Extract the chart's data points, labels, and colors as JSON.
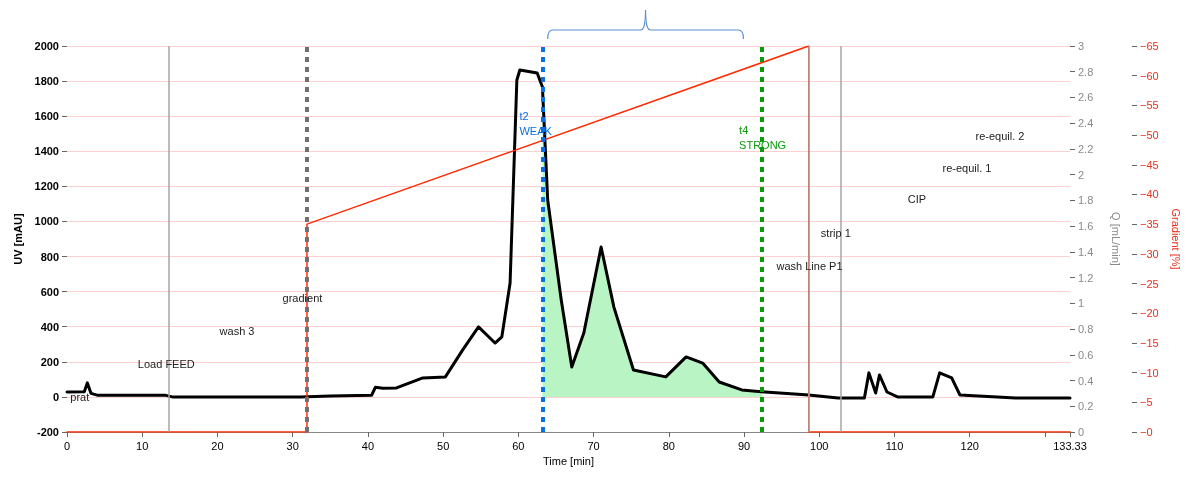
{
  "chart_data": {
    "type": "line",
    "xlabel": "Time [min]",
    "ylabel": "UV [mAU]",
    "y2label": "Q [mL/min]",
    "y3label": "Gradient [%]",
    "xlim": [
      0,
      133.33
    ],
    "xticks": [
      0,
      10,
      20,
      30,
      40,
      50,
      60,
      70,
      80,
      90,
      100,
      110,
      120,
      {
        "value": 130,
        "label": null
      },
      {
        "value": 133.33,
        "label": "133.33"
      }
    ],
    "ylim": [
      -200,
      2000
    ],
    "yticks": [
      -200,
      0,
      200,
      400,
      600,
      800,
      1000,
      1200,
      1400,
      1600,
      1800,
      2000
    ],
    "y2lim": [
      0,
      3
    ],
    "y2ticks": [
      0,
      0.2,
      0.4,
      0.6,
      0.8,
      1,
      1.2,
      1.4,
      1.6,
      1.8,
      2,
      2.2,
      2.4,
      2.6,
      2.8,
      3
    ],
    "y3lim": [
      0,
      -65
    ],
    "y3ticks": [
      {
        "value": 0,
        "label": "−0"
      },
      {
        "value": -5,
        "label": "−5"
      },
      {
        "value": -10,
        "label": "−10"
      },
      {
        "value": -15,
        "label": "−15"
      },
      {
        "value": -20,
        "label": "−20"
      },
      {
        "value": -25,
        "label": "−25"
      },
      {
        "value": -30,
        "label": "−30"
      },
      {
        "value": -35,
        "label": "−35"
      },
      {
        "value": -40,
        "label": "−40"
      },
      {
        "value": -45,
        "label": "−45"
      },
      {
        "value": -50,
        "label": "−50"
      },
      {
        "value": -55,
        "label": "−55"
      },
      {
        "value": -60,
        "label": "−60"
      },
      {
        "value": -65,
        "label": "−65"
      }
    ],
    "grid": "y",
    "marker": "none",
    "series": [
      {
        "color": "#000000",
        "x": [
          0,
          2.3,
          2.7,
          3.2,
          4,
          13,
          14,
          31,
          35,
          40.5,
          41,
          42,
          43.8,
          47.3,
          50.3,
          52.6,
          54.7,
          56.9,
          57.8,
          58.9,
          59.8,
          60.2,
          62.5,
          63.2,
          63.9,
          65.7,
          67.1,
          68.7,
          71,
          72.7,
          75.3,
          79.6,
          82.3,
          84.5,
          86.7,
          89.7,
          92.8,
          98.6,
          102.5,
          106,
          106.6,
          107.5,
          108,
          109,
          110.4,
          115.1,
          116,
          117.6,
          118.7,
          126.1,
          133.33
        ],
        "values": [
          28,
          30,
          80,
          20,
          10,
          10,
          0,
          0,
          5,
          10,
          55,
          50,
          51,
          108,
          114,
          268,
          399,
          307,
          342,
          649,
          1806,
          1863,
          1846,
          1766,
          1122,
          552,
          171,
          364,
          854,
          512,
          153,
          114,
          228,
          193,
          85,
          40,
          28,
          11,
          -6,
          -6,
          137,
          22,
          125,
          28,
          0,
          0,
          137,
          108,
          11,
          -6,
          -6
        ]
      },
      {
        "type": "area",
        "color": "#b9f5c4",
        "x": [
          63.2,
          63.9,
          65.7,
          67.1,
          68.7,
          71,
          72.7,
          75.3,
          79.6,
          82.3,
          84.5,
          86.7,
          89.7,
          92.4
        ],
        "values": [
          1766,
          1122,
          552,
          171,
          364,
          854,
          512,
          153,
          114,
          228,
          193,
          85,
          40,
          30
        ]
      },
      {
        "color": "#ff2a00",
        "axis": "y3",
        "x": [
          0,
          31.9,
          31.9,
          98.6,
          98.6,
          133.33
        ],
        "values": [
          0,
          0,
          -35,
          -65,
          0,
          0
        ]
      }
    ],
    "ref_lines": [
      {
        "axis": "x",
        "value": 13.5,
        "color": "#a6a6a6",
        "line_style": "solid"
      },
      {
        "axis": "x",
        "value": 31.9,
        "color": "#707070",
        "line_style": "dotted"
      },
      {
        "axis": "x",
        "value": 63.2,
        "color": "#0a6fe0",
        "line_style": "dotted"
      },
      {
        "axis": "x",
        "value": 92.4,
        "color": "#0a9a0a",
        "line_style": "dotted"
      },
      {
        "axis": "x",
        "value": 98.6,
        "color": "#a6a6a6",
        "line_style": "solid"
      },
      {
        "axis": "x",
        "value": 102.9,
        "color": "#a6a6a6",
        "line_style": "solid"
      }
    ],
    "annotations": [
      {
        "text": "prat",
        "x": 1.7,
        "y": 0
      },
      {
        "text": "Load FEED",
        "x": 13.2,
        "y": 190
      },
      "wash 3",
      {
        "text": "gradient",
        "x": 31.3,
        "y": 565
      },
      {
        "text": "t2\nWEAK",
        "x": 63.2,
        "y": 1560
      },
      {
        "text": "t4\nSTRONG",
        "x": 92.4,
        "y": 1480
      },
      {
        "text": "wash Line P1",
        "x": 98.7,
        "y": 745
      },
      {
        "text": "strip 1",
        "x": 102.2,
        "y": 935
      },
      "CIP",
      "re-equil. 1",
      "re-equil. 2"
    ]
  }
}
